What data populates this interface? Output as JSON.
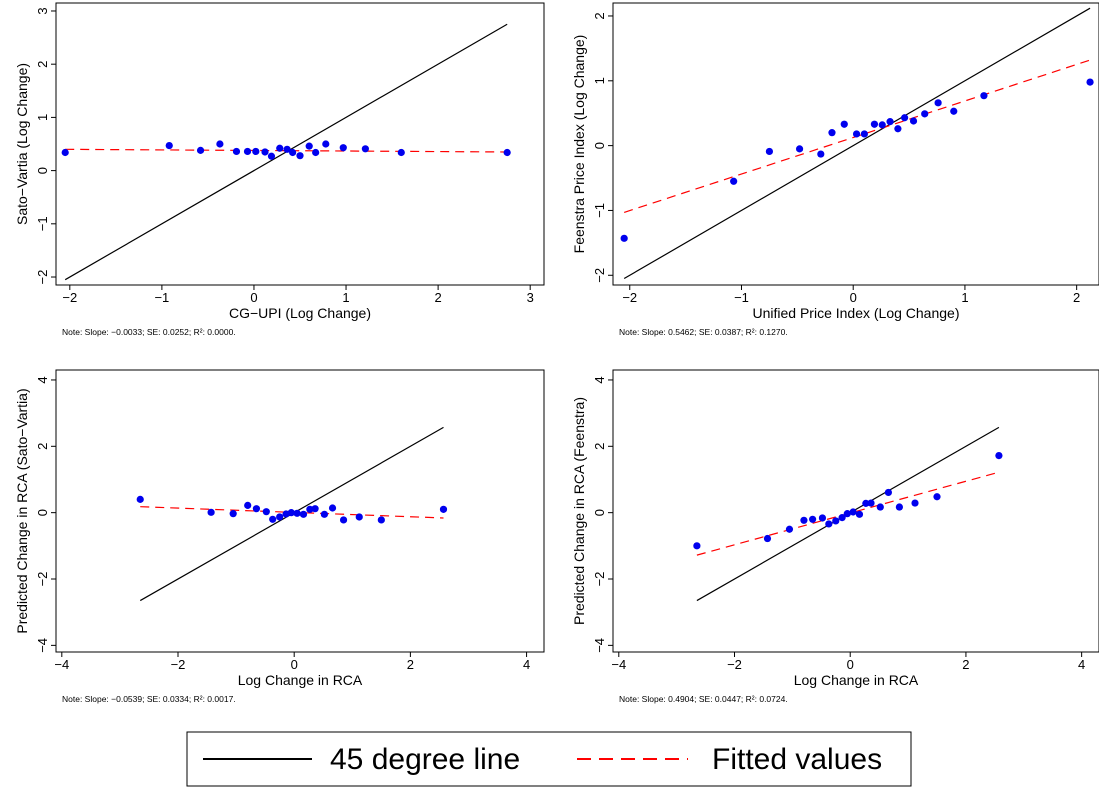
{
  "chart_data": [
    {
      "type": "scatter",
      "xlabel": "CG−UPI (Log Change)",
      "ylabel": "Sato−Vartia (Log Change)",
      "note": "Note: Slope: −0.0033; SE: 0.0252; R²: 0.0000.",
      "xlim": [
        -2.15,
        3.15
      ],
      "ylim": [
        -2.15,
        3.15
      ],
      "xticks": [
        -2,
        -1,
        0,
        1,
        2,
        3
      ],
      "yticks": [
        -2,
        -1,
        0,
        1,
        2,
        3
      ],
      "xtick_labels": [
        "−2",
        "−1",
        "0",
        "1",
        "2",
        "3"
      ],
      "ytick_labels": [
        "−2",
        "−1",
        "0",
        "1",
        "2",
        "3"
      ],
      "series": [
        {
          "name": "45 degree line",
          "type": "line",
          "x": [
            -2.05,
            2.75
          ],
          "y": [
            -2.05,
            2.75
          ],
          "color": "#000000"
        },
        {
          "name": "Fitted values",
          "type": "dashed-line",
          "x": [
            -2.05,
            2.75
          ],
          "y": [
            0.4,
            0.35
          ],
          "color": "#ff0000"
        },
        {
          "type": "points",
          "color": "#0000ee",
          "x": [
            -2.05,
            -0.92,
            -0.58,
            -0.37,
            -0.19,
            -0.07,
            0.02,
            0.12,
            0.19,
            0.28,
            0.36,
            0.42,
            0.5,
            0.6,
            0.67,
            0.78,
            0.97,
            1.21,
            1.6,
            2.75
          ],
          "y": [
            0.34,
            0.47,
            0.38,
            0.5,
            0.36,
            0.36,
            0.36,
            0.35,
            0.27,
            0.42,
            0.4,
            0.34,
            0.28,
            0.46,
            0.34,
            0.5,
            0.43,
            0.41,
            0.34,
            0.34
          ]
        }
      ]
    },
    {
      "type": "scatter",
      "xlabel": "Unified Price Index (Log Change)",
      "ylabel": "Feenstra Price Index (Log Change)",
      "note": "Note: Slope: 0.5462; SE: 0.0387; R²: 0.1270.",
      "xlim": [
        -2.15,
        2.2
      ],
      "ylim": [
        -2.15,
        2.2
      ],
      "xticks": [
        -2,
        -1,
        0,
        1,
        2
      ],
      "yticks": [
        -2,
        -1,
        0,
        1,
        2
      ],
      "xtick_labels": [
        "−2",
        "−1",
        "0",
        "1",
        "2"
      ],
      "ytick_labels": [
        "−2",
        "−1",
        "0",
        "1",
        "2"
      ],
      "series": [
        {
          "name": "45 degree line",
          "type": "line",
          "x": [
            -2.05,
            2.12
          ],
          "y": [
            -2.05,
            2.12
          ],
          "color": "#000000"
        },
        {
          "name": "Fitted values",
          "type": "dashed-line",
          "x": [
            -2.05,
            2.12
          ],
          "y": [
            -1.03,
            1.32
          ],
          "color": "#ff0000"
        },
        {
          "type": "points",
          "color": "#0000ee",
          "x": [
            -2.05,
            -1.07,
            -0.75,
            -0.48,
            -0.29,
            -0.19,
            -0.08,
            0.03,
            0.1,
            0.19,
            0.26,
            0.33,
            0.4,
            0.46,
            0.54,
            0.64,
            0.76,
            0.9,
            1.17,
            2.12
          ],
          "y": [
            -1.43,
            -0.55,
            -0.09,
            -0.05,
            -0.13,
            0.2,
            0.33,
            0.18,
            0.18,
            0.33,
            0.32,
            0.37,
            0.26,
            0.43,
            0.38,
            0.49,
            0.66,
            0.53,
            0.77,
            0.98
          ]
        }
      ]
    },
    {
      "type": "scatter",
      "xlabel": "Log Change in RCA",
      "ylabel": "Predicted Change in RCA (Sato−Vartia)",
      "note": "Note: Slope: −0.0539; SE: 0.0334; R²: 0.0017.",
      "xlim": [
        -4.1,
        4.3
      ],
      "ylim": [
        -4.2,
        4.3
      ],
      "xticks": [
        -4,
        -2,
        0,
        2,
        4
      ],
      "yticks": [
        -4,
        -2,
        0,
        2,
        4
      ],
      "xtick_labels": [
        "−4",
        "−2",
        "0",
        "2",
        "4"
      ],
      "ytick_labels": [
        "−4",
        "−2",
        "0",
        "2",
        "4"
      ],
      "series": [
        {
          "name": "45 degree line",
          "type": "line",
          "x": [
            -2.65,
            2.57
          ],
          "y": [
            -2.65,
            2.57
          ],
          "color": "#000000"
        },
        {
          "name": "Fitted values",
          "type": "dashed-line",
          "x": [
            -2.65,
            2.57
          ],
          "y": [
            0.18,
            -0.16
          ],
          "color": "#ff0000"
        },
        {
          "type": "points",
          "color": "#0000ee",
          "x": [
            -2.65,
            -1.43,
            -1.05,
            -0.8,
            -0.65,
            -0.48,
            -0.37,
            -0.25,
            -0.14,
            -0.05,
            0.05,
            0.16,
            0.27,
            0.36,
            0.52,
            0.66,
            0.85,
            1.12,
            1.5,
            2.57
          ],
          "y": [
            0.4,
            0.01,
            -0.03,
            0.22,
            0.12,
            0.03,
            -0.2,
            -0.13,
            -0.04,
            0.0,
            -0.02,
            -0.05,
            0.1,
            0.12,
            -0.05,
            0.14,
            -0.22,
            -0.13,
            -0.22,
            0.1
          ]
        }
      ]
    },
    {
      "type": "scatter",
      "xlabel": "Log Change in RCA",
      "ylabel": "Predicted Change in RCA (Feenstra)",
      "note": "Note: Slope: 0.4904; SE: 0.0447; R²: 0.0724.",
      "xlim": [
        -4.1,
        4.3
      ],
      "ylim": [
        -4.2,
        4.3
      ],
      "xticks": [
        -4,
        -2,
        0,
        2,
        4
      ],
      "yticks": [
        -4,
        -2,
        0,
        2,
        4
      ],
      "xtick_labels": [
        "−4",
        "−2",
        "0",
        "2",
        "4"
      ],
      "ytick_labels": [
        "−4",
        "−2",
        "0",
        "2",
        "4"
      ],
      "series": [
        {
          "name": "45 degree line",
          "type": "line",
          "x": [
            -2.65,
            2.57
          ],
          "y": [
            -2.65,
            2.57
          ],
          "color": "#000000"
        },
        {
          "name": "Fitted values",
          "type": "dashed-line",
          "x": [
            -2.65,
            2.57
          ],
          "y": [
            -1.28,
            1.22
          ],
          "color": "#ff0000"
        },
        {
          "type": "points",
          "color": "#0000ee",
          "x": [
            -2.65,
            -1.43,
            -1.05,
            -0.8,
            -0.65,
            -0.48,
            -0.37,
            -0.25,
            -0.14,
            -0.05,
            0.05,
            0.16,
            0.27,
            0.36,
            0.52,
            0.66,
            0.85,
            1.12,
            1.5,
            2.57
          ],
          "y": [
            -1.0,
            -0.78,
            -0.5,
            -0.23,
            -0.2,
            -0.16,
            -0.34,
            -0.25,
            -0.15,
            -0.03,
            0.02,
            -0.05,
            0.28,
            0.29,
            0.17,
            0.61,
            0.17,
            0.29,
            0.48,
            1.72
          ]
        }
      ]
    }
  ],
  "legend": {
    "items": [
      {
        "label": "45 degree line",
        "style": "solid",
        "color": "#000000"
      },
      {
        "label": "Fitted values",
        "style": "dashed",
        "color": "#ff0000"
      }
    ],
    "placement": "bottom-center"
  }
}
